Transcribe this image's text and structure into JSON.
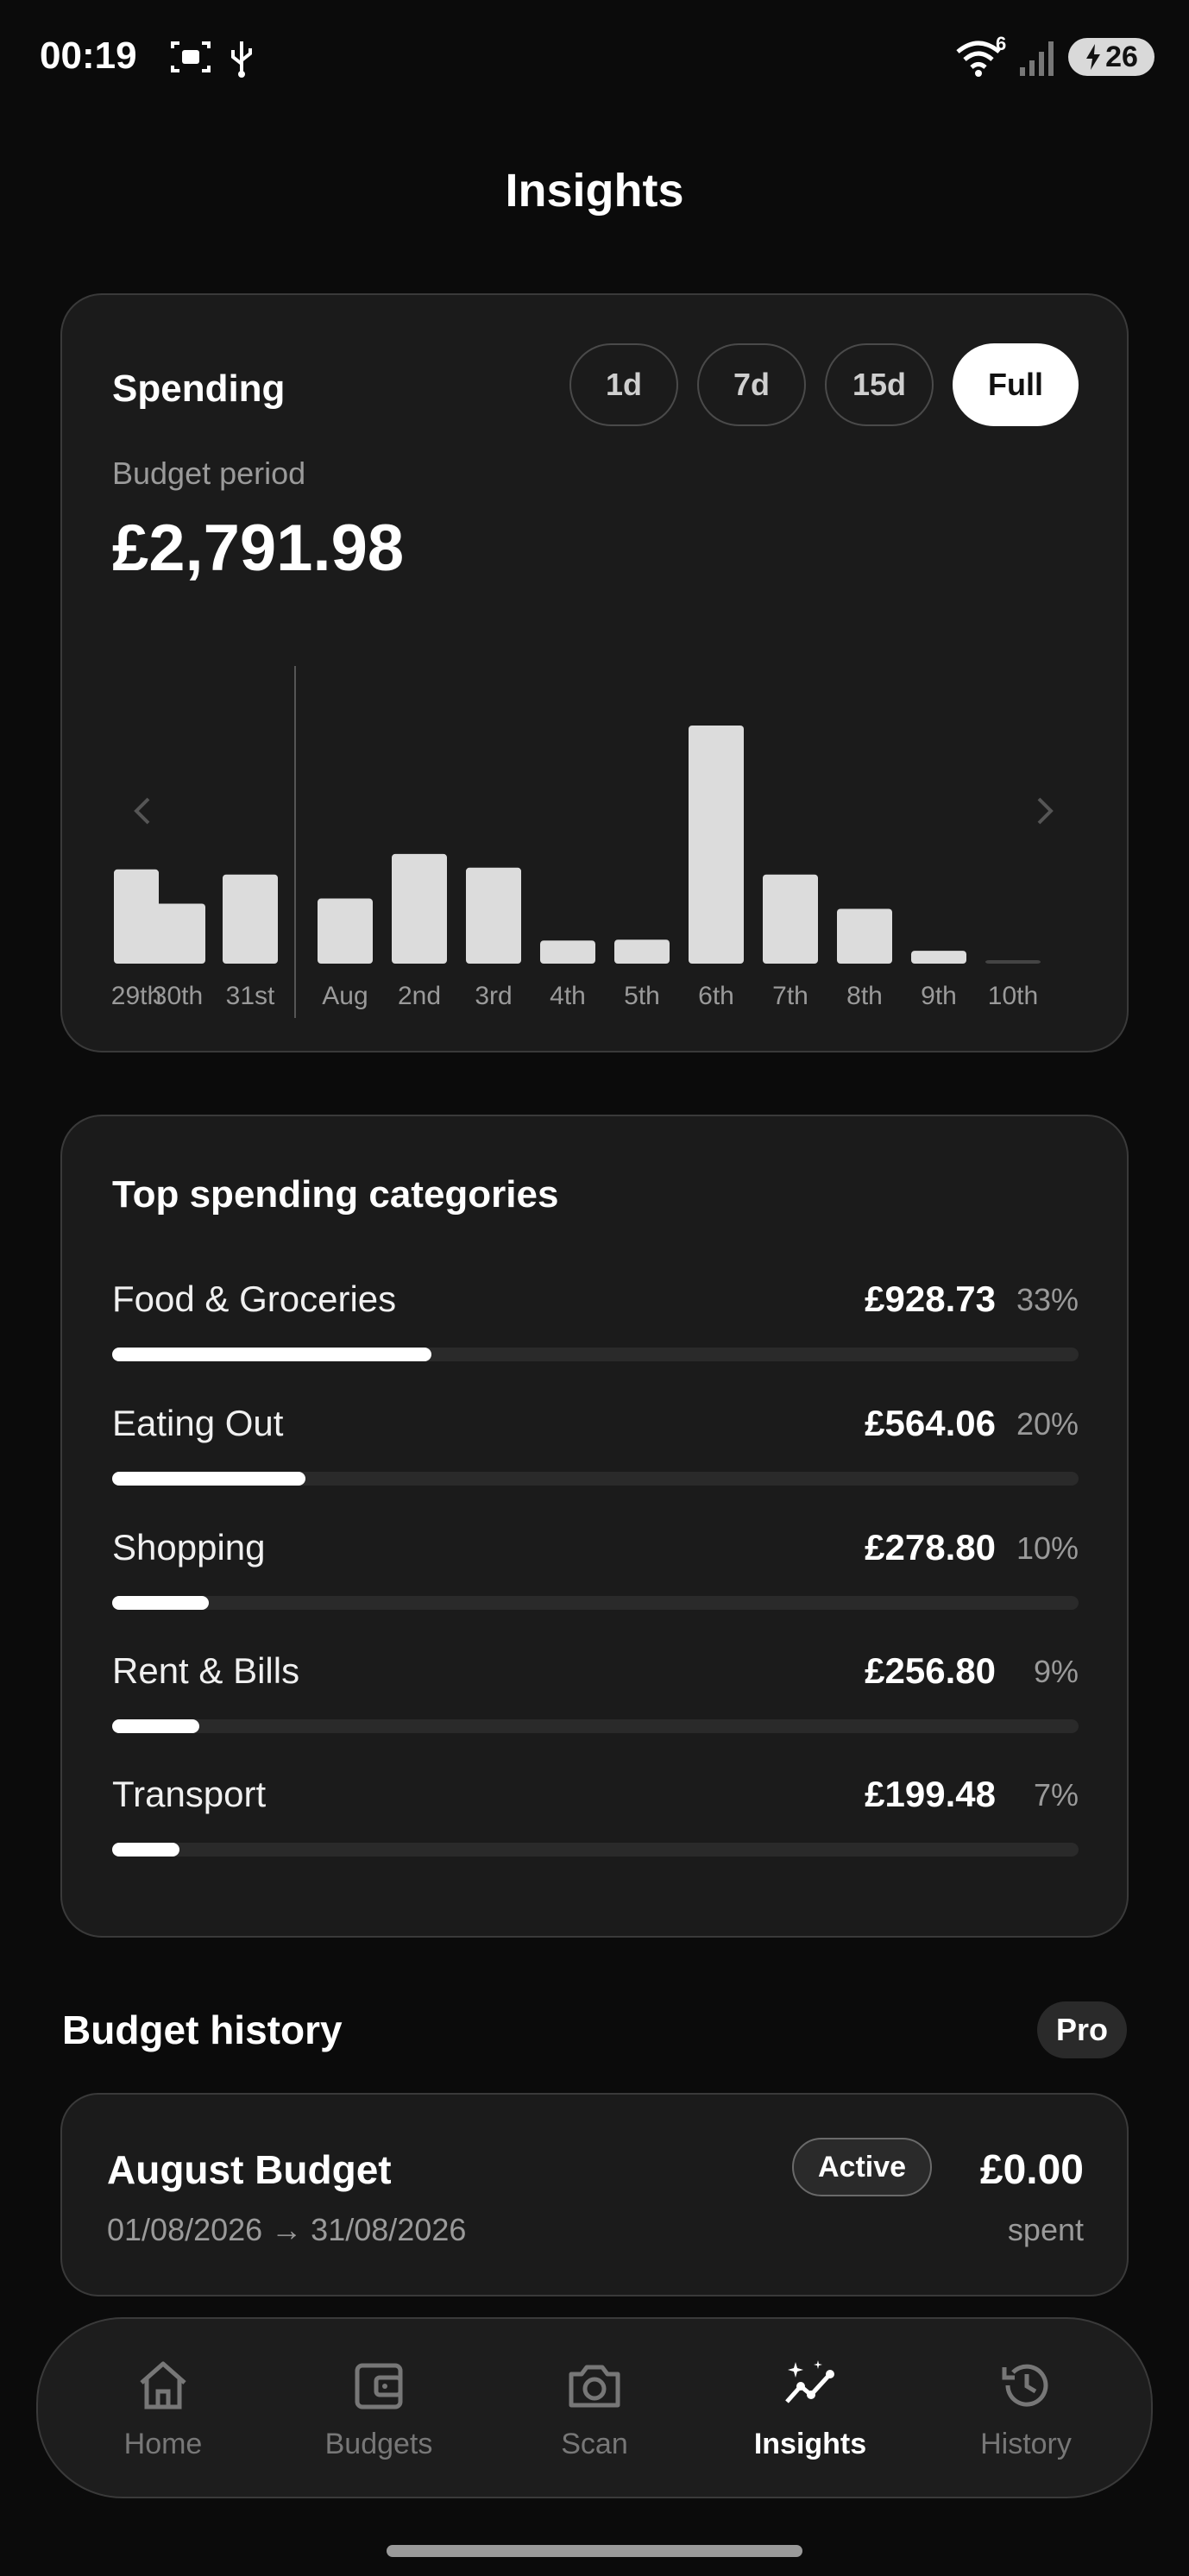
{
  "status_bar": {
    "time": "00:19",
    "wifi_badge": "6",
    "battery": "26",
    "icons": [
      "screenshot-icon",
      "usb-icon",
      "wifi-icon",
      "signal-icon",
      "battery-charging-icon"
    ]
  },
  "page": {
    "title": "Insights"
  },
  "spending": {
    "title": "Spending",
    "ranges": [
      {
        "label": "1d",
        "active": false
      },
      {
        "label": "7d",
        "active": false
      },
      {
        "label": "15d",
        "active": false
      },
      {
        "label": "Full",
        "active": true
      }
    ],
    "period_label": "Budget period",
    "amount": "£2,791.98"
  },
  "chart_data": {
    "type": "bar",
    "categories": [
      "29th",
      "30th",
      "31st",
      "Aug",
      "2nd",
      "3rd",
      "4th",
      "5th",
      "6th",
      "7th",
      "8th",
      "9th",
      "10th"
    ],
    "values": [
      110,
      70,
      104,
      76,
      128,
      112,
      27,
      28,
      278,
      104,
      64,
      15,
      3
    ],
    "ylim": [
      0,
      280
    ],
    "divider_after": "31st",
    "grid": false
  },
  "categories": {
    "title": "Top spending categories",
    "items": [
      {
        "name": "Food & Groceries",
        "amount": "£928.73",
        "percent": "33%",
        "fraction": 0.33
      },
      {
        "name": "Eating Out",
        "amount": "£564.06",
        "percent": "20%",
        "fraction": 0.2
      },
      {
        "name": "Shopping",
        "amount": "£278.80",
        "percent": "10%",
        "fraction": 0.1
      },
      {
        "name": "Rent & Bills",
        "amount": "£256.80",
        "percent": "9%",
        "fraction": 0.09
      },
      {
        "name": "Transport",
        "amount": "£199.48",
        "percent": "7%",
        "fraction": 0.07
      }
    ]
  },
  "budget_history": {
    "title": "Budget history",
    "badge": "Pro",
    "budget": {
      "name": "August Budget",
      "dates": "01/08/2026 → 31/08/2026",
      "status": "Active",
      "spent": "£0.00",
      "spent_label": "spent"
    }
  },
  "nav": {
    "items": [
      {
        "label": "Home",
        "icon": "home-icon",
        "active": false
      },
      {
        "label": "Budgets",
        "icon": "wallet-icon",
        "active": false
      },
      {
        "label": "Scan",
        "icon": "camera-icon",
        "active": false
      },
      {
        "label": "Insights",
        "icon": "insights-icon",
        "active": true
      },
      {
        "label": "History",
        "icon": "history-icon",
        "active": false
      }
    ]
  }
}
